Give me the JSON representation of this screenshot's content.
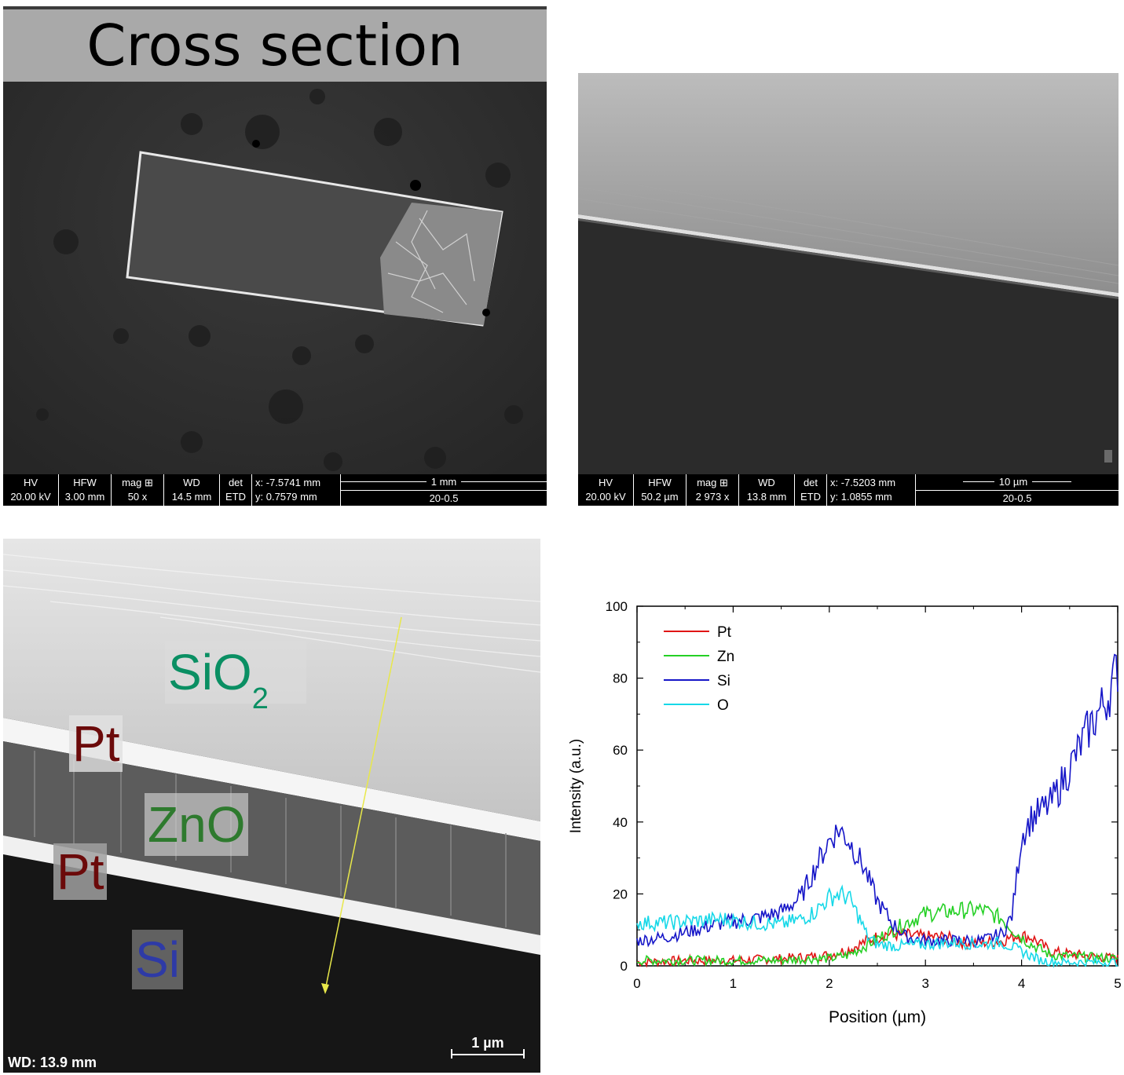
{
  "panel_a": {
    "title": "Cross section",
    "databar": {
      "hv_label": "HV",
      "hv_value": "20.00 kV",
      "hfw_label": "HFW",
      "hfw_value": "3.00 mm",
      "mag_label": "mag ⊞",
      "mag_value": "50 x",
      "wd_label": "WD",
      "wd_value": "14.5 mm",
      "det_label": "det",
      "det_value": "ETD",
      "x_value": "x: -7.5741 mm",
      "y_value": "y: 0.7579 mm",
      "scale_label": "1 mm",
      "sample": "20-0.5"
    }
  },
  "panel_b": {
    "databar": {
      "hv_label": "HV",
      "hv_value": "20.00 kV",
      "hfw_label": "HFW",
      "hfw_value": "50.2 µm",
      "mag_label": "mag ⊞",
      "mag_value": "2 973 x",
      "wd_label": "WD",
      "wd_value": "13.8 mm",
      "det_label": "det",
      "det_value": "ETD",
      "x_value": "x: -7.5203 mm",
      "y_value": "y: 1.0855 mm",
      "scale_label": "10 µm",
      "sample": "20-0.5"
    }
  },
  "panel_c": {
    "labels": {
      "sio2": "SiO",
      "sio2_sub": "2",
      "pt_top": "Pt",
      "zno": "ZnO",
      "pt_bottom": "Pt",
      "si": "Si"
    },
    "wd": "WD: 13.9 mm",
    "scale_label": "1 µm",
    "colors": {
      "sio2": "#0a8f63",
      "pt": "#6b0a0a",
      "zno": "#2e7a2e",
      "si": "#2e3aa6"
    }
  },
  "chart_data": {
    "type": "line",
    "title": "",
    "xlabel": "Position (µm)",
    "ylabel": "Intensity (a.u.)",
    "xlim": [
      0,
      5
    ],
    "ylim": [
      0,
      100
    ],
    "xticks": [
      0,
      1,
      2,
      3,
      4,
      5
    ],
    "yticks": [
      0,
      20,
      40,
      60,
      80,
      100
    ],
    "legend_position": "top-left",
    "series": [
      {
        "name": "Pt",
        "color": "#e01515",
        "x": [
          0,
          0.5,
          1.0,
          1.5,
          1.8,
          2.0,
          2.2,
          2.4,
          2.6,
          2.8,
          3.0,
          3.2,
          3.4,
          3.6,
          3.8,
          3.95,
          4.1,
          4.3,
          4.6,
          5.0
        ],
        "y": [
          1,
          1.5,
          1.5,
          2,
          2.5,
          3,
          4.5,
          7,
          9,
          8.5,
          8,
          8,
          6.5,
          6.5,
          7,
          8.5,
          8,
          4,
          3,
          2
        ]
      },
      {
        "name": "Zn",
        "color": "#25d025",
        "x": [
          0,
          0.5,
          1.0,
          1.5,
          1.8,
          2.0,
          2.2,
          2.4,
          2.6,
          2.8,
          3.0,
          3.2,
          3.4,
          3.6,
          3.8,
          3.95,
          4.1,
          4.3,
          4.6,
          5.0
        ],
        "y": [
          1.5,
          1.5,
          1.5,
          1.5,
          2,
          2,
          3,
          6,
          9,
          12,
          14.5,
          15,
          15.5,
          15.5,
          13,
          9,
          6,
          3,
          2.5,
          2
        ]
      },
      {
        "name": "Si",
        "color": "#1616c8",
        "x": [
          0,
          0.3,
          0.6,
          0.9,
          1.2,
          1.5,
          1.7,
          1.85,
          2.0,
          2.1,
          2.2,
          2.35,
          2.5,
          2.65,
          2.8,
          3.0,
          3.3,
          3.6,
          3.8,
          3.9,
          3.95,
          4.0,
          4.1,
          4.3,
          4.5,
          4.7,
          4.9,
          5.0
        ],
        "y": [
          7,
          8,
          10,
          12,
          13,
          15,
          19,
          27,
          35,
          38,
          35,
          28,
          18,
          12,
          8,
          7,
          7,
          7,
          9,
          14,
          25,
          36,
          41,
          45,
          55,
          66,
          75,
          83
        ]
      },
      {
        "name": "O",
        "color": "#16d8e8",
        "x": [
          0,
          0.3,
          0.6,
          0.9,
          1.2,
          1.5,
          1.7,
          1.85,
          2.0,
          2.1,
          2.2,
          2.3,
          2.4,
          2.5,
          2.7,
          3.0,
          3.3,
          3.6,
          3.8,
          4.0,
          4.2,
          4.4,
          4.7,
          5.0
        ],
        "y": [
          12,
          12,
          12.5,
          13,
          12,
          11.5,
          13,
          15,
          19,
          20,
          19,
          14,
          8,
          6,
          5.5,
          6,
          6.5,
          6,
          6.5,
          4,
          1.5,
          1,
          1,
          1
        ]
      }
    ]
  }
}
